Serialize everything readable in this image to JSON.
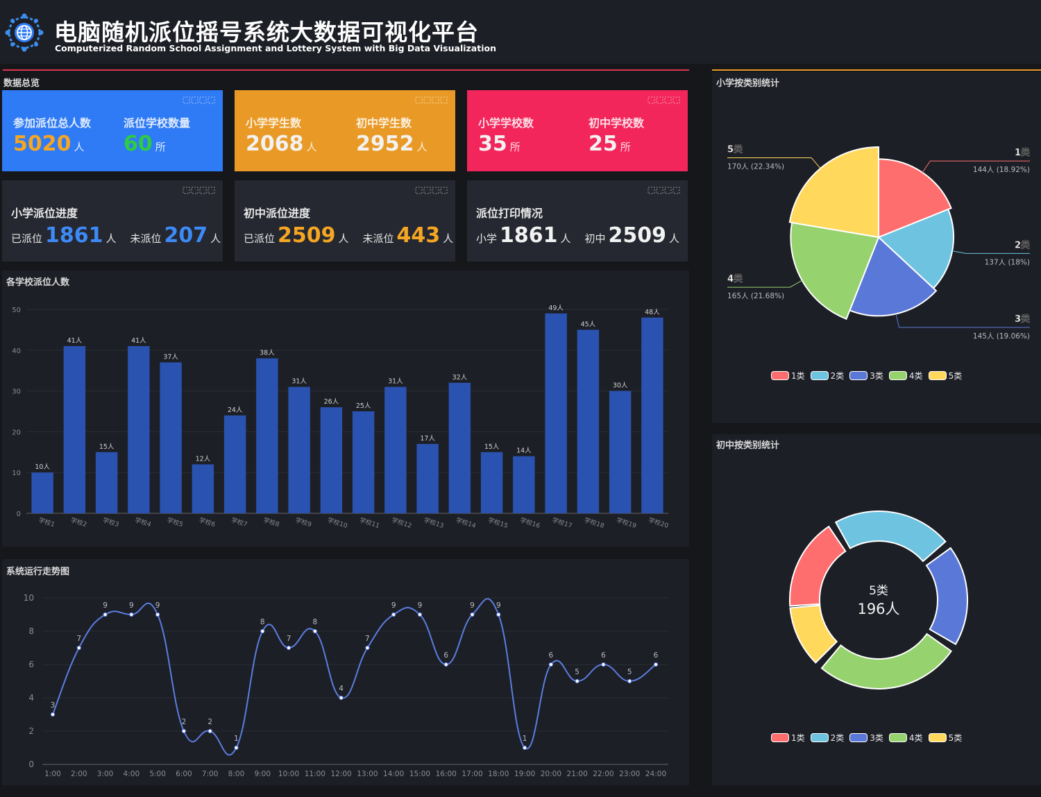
{
  "header": {
    "title_cn": "电脑随机派位摇号系统大数据可视化平台",
    "title_en": "Computerized Random School Assignment and Lottery System with Big Data Visualization"
  },
  "overview": {
    "title": "数据总览",
    "cards": [
      {
        "label": "参加派位总人数",
        "value": "5020",
        "unit": "人",
        "value_color": "#f5a623"
      },
      {
        "label": "派位学校数量",
        "value": "60",
        "unit": "所",
        "value_color": "#2ecc40"
      },
      {
        "label": "小学学生数",
        "value": "2068",
        "unit": "人",
        "value_color": "#f2f2f2"
      },
      {
        "label": "初中学生数",
        "value": "2952",
        "unit": "人",
        "value_color": "#f2f2f2"
      },
      {
        "label": "小学学校数",
        "value": "35",
        "unit": "所",
        "value_color": "#f2f2f2"
      },
      {
        "label": "初中学校数",
        "value": "25",
        "unit": "所",
        "value_color": "#f2f2f2"
      }
    ],
    "card_colors": [
      "#2f7bf5",
      "#e99a26",
      "#f2265b"
    ],
    "progress": [
      {
        "title": "小学派位进度",
        "a_label": "已派位",
        "a_value": "1861",
        "a_unit": "人",
        "b_label": "未派位",
        "b_value": "207",
        "b_unit": "人",
        "color": "#3d8af7"
      },
      {
        "title": "初中派位进度",
        "a_label": "已派位",
        "a_value": "2509",
        "a_unit": "人",
        "b_label": "未派位",
        "b_value": "443",
        "b_unit": "人",
        "color": "#f5a623"
      },
      {
        "title": "派位打印情况",
        "a_label": "小学",
        "a_value": "1861",
        "a_unit": "人",
        "b_label": "初中",
        "b_value": "2509",
        "b_unit": "人",
        "color": "#f2f2f2"
      }
    ]
  },
  "bar_panel": {
    "title": "各学校派位人数"
  },
  "line_panel": {
    "title": "系统运行走势图"
  },
  "pie_panel": {
    "title": "小学按类别统计"
  },
  "donut_panel": {
    "title": "初中按类别统计",
    "center_name": "5类",
    "center_value": "196人"
  },
  "category_colors": [
    "#ff6e6e",
    "#6ec3e0",
    "#5a78d8",
    "#96d26e",
    "#ffd85c"
  ],
  "chart_data": [
    {
      "type": "bar",
      "categories": [
        "学校1",
        "学校2",
        "学校3",
        "学校4",
        "学校5",
        "学校6",
        "学校7",
        "学校8",
        "学校9",
        "学校10",
        "学校11",
        "学校12",
        "学校13",
        "学校14",
        "学校15",
        "学校16",
        "学校17",
        "学校18",
        "学校19",
        "学校20"
      ],
      "values": [
        10,
        41,
        15,
        41,
        37,
        12,
        24,
        38,
        31,
        26,
        25,
        31,
        17,
        32,
        15,
        14,
        49,
        45,
        30,
        48
      ],
      "value_suffix": "人",
      "ylim": [
        0,
        50
      ],
      "yticks": [
        0,
        10,
        20,
        30,
        40,
        50
      ],
      "bar_color": "#2a52b0",
      "grid": true
    },
    {
      "type": "line",
      "x": [
        "1:00",
        "2:00",
        "3:00",
        "4:00",
        "5:00",
        "6:00",
        "7:00",
        "8:00",
        "9:00",
        "10:00",
        "11:00",
        "12:00",
        "13:00",
        "14:00",
        "15:00",
        "16:00",
        "17:00",
        "18:00",
        "19:00",
        "20:00",
        "21:00",
        "22:00",
        "23:00",
        "24:00"
      ],
      "values": [
        3,
        7,
        9,
        9,
        9,
        2,
        2,
        1,
        8,
        7,
        8,
        4,
        7,
        9,
        9,
        6,
        9,
        9,
        1,
        6,
        5,
        6,
        5,
        6
      ],
      "ylim": [
        0,
        10
      ],
      "yticks": [
        0,
        2,
        4,
        6,
        8,
        10
      ],
      "line_color": "#5b7ee0",
      "smooth": true,
      "grid": true
    },
    {
      "type": "pie",
      "categories": [
        "1类",
        "2类",
        "3类",
        "4类",
        "5类"
      ],
      "values": [
        144,
        137,
        145,
        165,
        170
      ],
      "labels": [
        "144人 (18.92%)",
        "137人 (18%)",
        "145人 (19.06%)",
        "165人 (21.68%)",
        "170人 (22.34%)"
      ],
      "legend": "bottom"
    },
    {
      "type": "pie",
      "variant": "donut",
      "categories": [
        "1类",
        "2类",
        "3类",
        "4类",
        "5类"
      ],
      "legend": "bottom"
    }
  ]
}
